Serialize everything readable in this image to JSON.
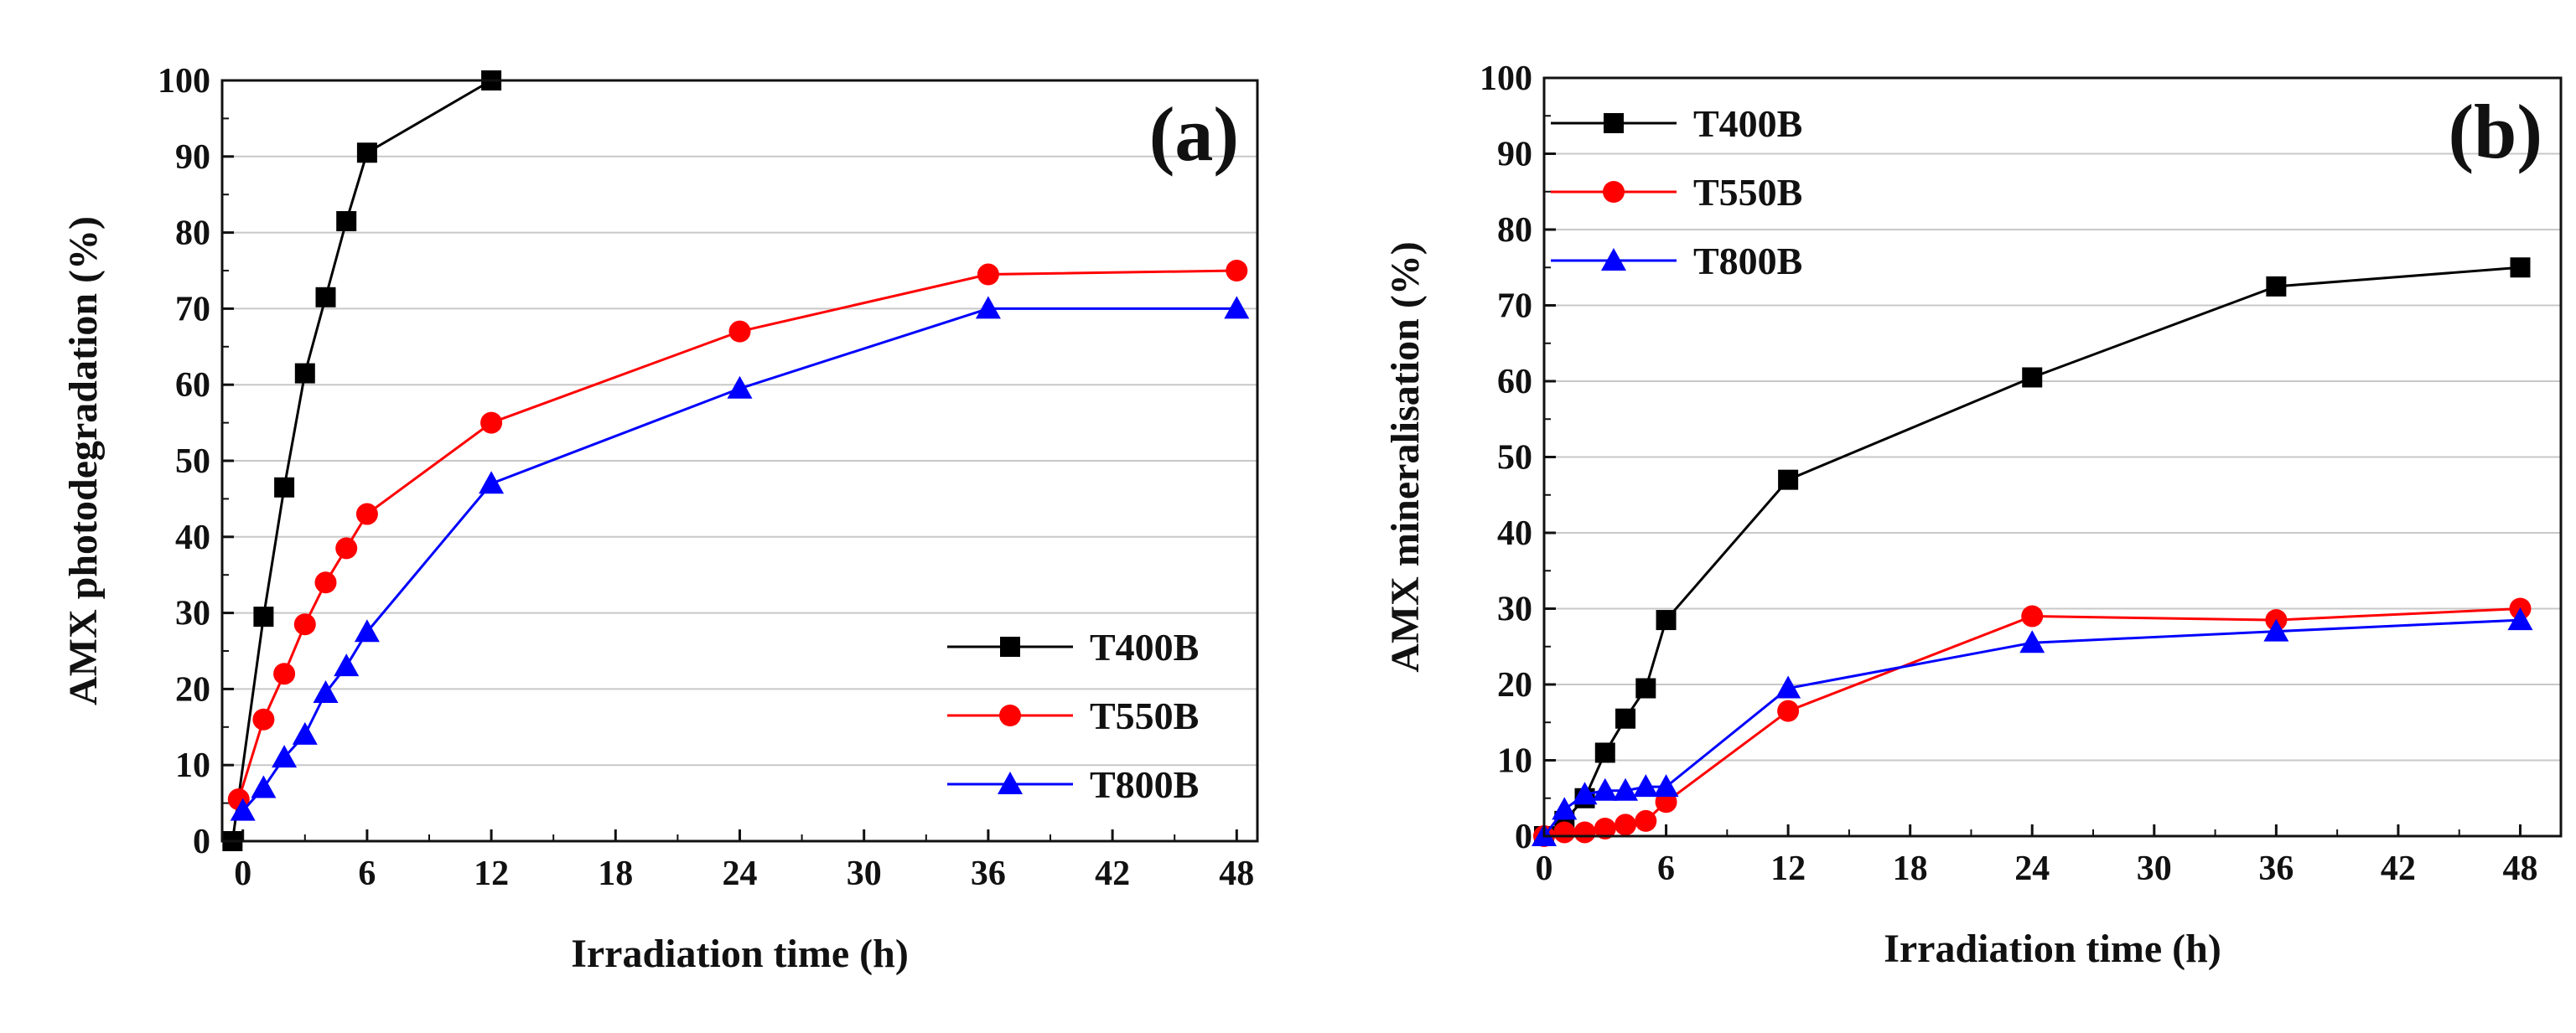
{
  "chart_data": [
    {
      "type": "line",
      "panel_label": "(a)",
      "xlabel": "Irradiation time (h)",
      "ylabel": "AMX photodegradation (%)",
      "xlim": [
        -1,
        49
      ],
      "ylim": [
        0,
        100
      ],
      "xticks": [
        0,
        6,
        12,
        18,
        24,
        30,
        36,
        42,
        48
      ],
      "yticks": [
        0,
        10,
        20,
        30,
        40,
        50,
        60,
        70,
        80,
        90,
        100
      ],
      "grid": true,
      "legend_position": "bottom-right",
      "series": [
        {
          "name": "T400B",
          "color": "#000000",
          "marker": "square",
          "x": [
            -0.5,
            1,
            2,
            3,
            4,
            5,
            6,
            12
          ],
          "y": [
            0,
            29.5,
            46.5,
            61.5,
            71.5,
            81.5,
            90.5,
            100
          ]
        },
        {
          "name": "T550B",
          "color": "#ff0000",
          "marker": "circle",
          "x": [
            -0.2,
            1,
            2,
            3,
            4,
            5,
            6,
            12,
            24,
            36,
            48
          ],
          "y": [
            5.5,
            16,
            22,
            28.5,
            34,
            38.5,
            43,
            55,
            67,
            74.5,
            75
          ]
        },
        {
          "name": "T800B",
          "color": "#0000ff",
          "marker": "triangle",
          "x": [
            0,
            1,
            2,
            3,
            4,
            5,
            6,
            12,
            24,
            36,
            48
          ],
          "y": [
            4,
            7,
            11,
            14,
            19.5,
            23,
            27.5,
            47,
            59.5,
            70,
            70
          ]
        }
      ]
    },
    {
      "type": "line",
      "panel_label": "(b)",
      "xlabel": "Irradiation time (h)",
      "ylabel": "AMX mineralisation (%)",
      "xlim": [
        0,
        50
      ],
      "ylim": [
        0,
        100
      ],
      "xticks": [
        0,
        6,
        12,
        18,
        24,
        30,
        36,
        42,
        48
      ],
      "yticks": [
        0,
        10,
        20,
        30,
        40,
        50,
        60,
        70,
        80,
        90,
        100
      ],
      "grid": true,
      "legend_position": "top-left",
      "series": [
        {
          "name": "T400B",
          "color": "#000000",
          "marker": "square",
          "x": [
            0,
            1,
            2,
            3,
            4,
            5,
            6,
            12,
            24,
            36,
            48
          ],
          "y": [
            0,
            2,
            5,
            11,
            15.5,
            19.5,
            28.5,
            47,
            60.5,
            72.5,
            75
          ]
        },
        {
          "name": "T550B",
          "color": "#ff0000",
          "marker": "circle",
          "x": [
            0,
            1,
            2,
            3,
            4,
            5,
            6,
            12,
            24,
            36,
            48
          ],
          "y": [
            0,
            0.5,
            0.5,
            1,
            1.5,
            2,
            4.5,
            16.5,
            29,
            28.5,
            30
          ]
        },
        {
          "name": "T800B",
          "color": "#0000ff",
          "marker": "triangle",
          "x": [
            0,
            1,
            2,
            3,
            4,
            5,
            6,
            12,
            24,
            36,
            48
          ],
          "y": [
            0,
            3.5,
            5.5,
            6,
            6,
            6.5,
            6.5,
            19.5,
            25.5,
            27,
            28.5
          ]
        }
      ]
    }
  ]
}
